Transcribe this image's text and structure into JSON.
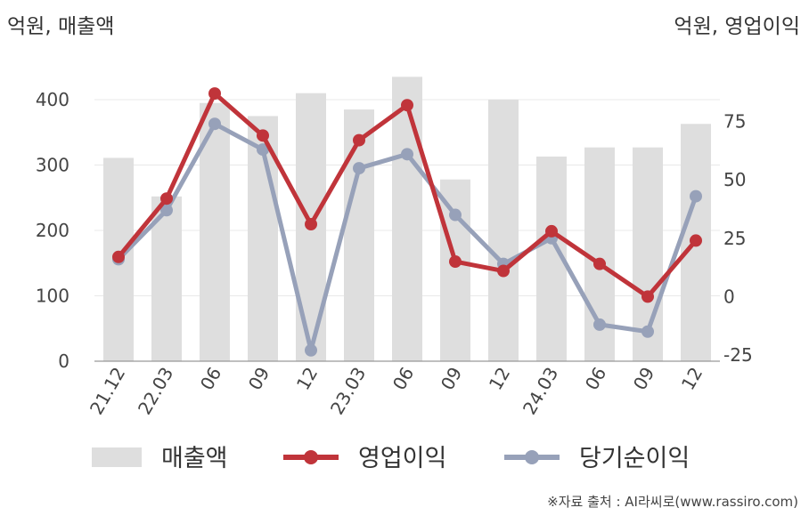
{
  "units": {
    "left": "억원, 매출액",
    "right": "억원, 영업이익"
  },
  "source": "※자료 출처 : AI라씨로(www.rassiro.com)",
  "colors": {
    "bar": "#dedede",
    "operating_profit": "#c0343a",
    "net_income": "#97a1b9",
    "grid": "#e8e8e8",
    "axis": "#999999"
  },
  "chart_data": {
    "type": "bar",
    "categories": [
      "21.12",
      "22.03",
      "06",
      "09",
      "12",
      "23.03",
      "06",
      "09",
      "12",
      "24.03",
      "06",
      "09",
      "12"
    ],
    "y_left": {
      "ticks": [
        0,
        100,
        200,
        300,
        400
      ],
      "range": [
        0,
        430
      ]
    },
    "y_right": {
      "ticks": [
        -25,
        0,
        25,
        50,
        75
      ],
      "range": [
        -25,
        100
      ]
    },
    "series": [
      {
        "name": "매출액",
        "kind": "bar",
        "axis": "left",
        "values": [
          311,
          252,
          395,
          375,
          410,
          385,
          435,
          278,
          400,
          313,
          327,
          327,
          363
        ]
      },
      {
        "name": "영업이익",
        "kind": "line",
        "axis": "right",
        "values": [
          17,
          42,
          87,
          69,
          31,
          67,
          82,
          15,
          11,
          28,
          14,
          0,
          24
        ]
      },
      {
        "name": "당기순이익",
        "kind": "line",
        "axis": "right",
        "values": [
          16,
          37,
          74,
          63,
          -23,
          55,
          61,
          35,
          14,
          25,
          -12,
          -15,
          43
        ]
      }
    ]
  }
}
